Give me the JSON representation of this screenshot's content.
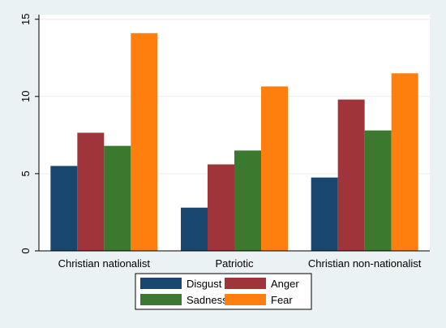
{
  "chart_data": {
    "type": "bar",
    "categories": [
      "Christian nationalist",
      "Patriotic",
      "Christian non-nationalist"
    ],
    "series": [
      {
        "name": "Disgust",
        "color": "#1a476f",
        "values": [
          5.5,
          2.8,
          4.75
        ]
      },
      {
        "name": "Anger",
        "color": "#a0343b",
        "values": [
          7.65,
          5.6,
          9.8
        ]
      },
      {
        "name": "Sadness",
        "color": "#3b7a2e",
        "values": [
          6.8,
          6.5,
          7.8
        ]
      },
      {
        "name": "Fear",
        "color": "#ff7f0e",
        "values": [
          14.1,
          10.65,
          11.5
        ]
      }
    ],
    "yticks": [
      0,
      5,
      10,
      15
    ],
    "ylim": [
      0,
      15.3
    ],
    "grid": true,
    "legend_position": "bottom",
    "legend_columns": 2,
    "plot_background": "#ffffff",
    "page_background": "#eaf2f3"
  }
}
